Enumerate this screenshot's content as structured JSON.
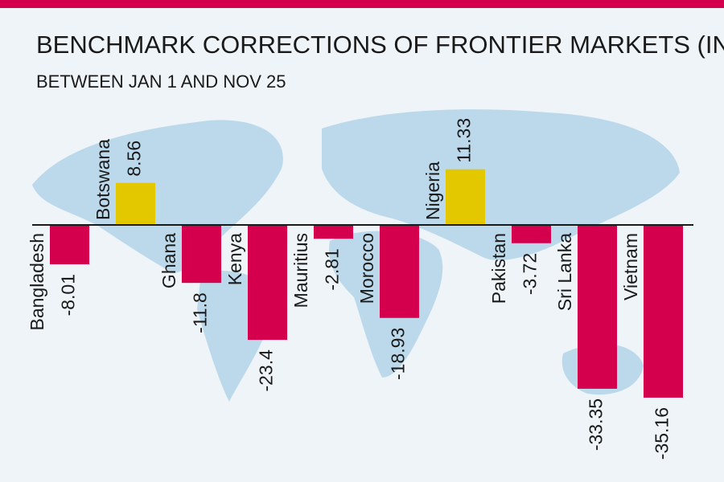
{
  "chart_data": {
    "type": "bar",
    "title": "BENCHMARK CORRECTIONS OF FRONTIER MARKETS (IN %)",
    "subtitle": "BETWEEN JAN 1 AND NOV 25",
    "categories": [
      "Bangladesh",
      "Botswana",
      "Ghana",
      "Kenya",
      "Mauritius",
      "Morocco",
      "Nigeria",
      "Pakistan",
      "Sri Lanka",
      "Vietnam"
    ],
    "values": [
      -8.01,
      8.56,
      -11.8,
      -23.4,
      -2.81,
      -18.93,
      11.33,
      -3.72,
      -33.35,
      -35.16
    ],
    "positive_color": "#e3c800",
    "negative_color": "#d4004e"
  }
}
